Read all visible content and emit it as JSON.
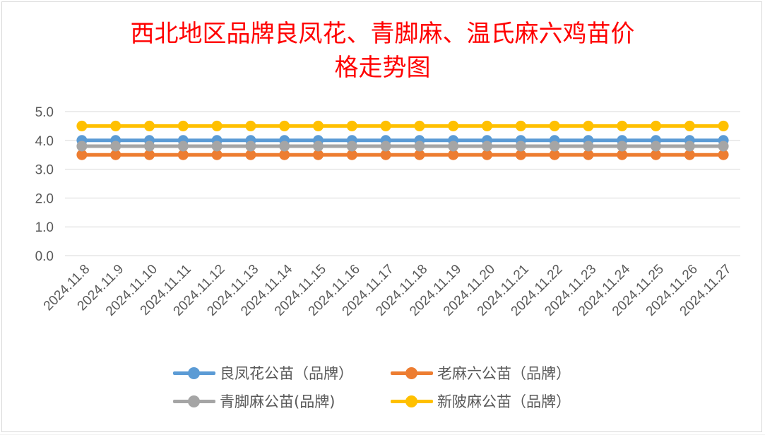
{
  "colors": {
    "title": "#ff0000",
    "grid": "#d9d9d9",
    "tick_text": "#595959",
    "series": [
      "#5b9bd5",
      "#ed7d31",
      "#a5a5a5",
      "#ffc000"
    ]
  },
  "chart_data": {
    "type": "line",
    "title": "西北地区品牌良凤花、青脚麻、温氏麻六鸡苗价格走势图",
    "title_lines": [
      "西北地区品牌良凤花、青脚麻、温氏麻六鸡苗价",
      "格走势图"
    ],
    "xlabel": "",
    "ylabel": "",
    "x": [
      "2024.11.8",
      "2024.11.9",
      "2024.11.10",
      "2024.11.11",
      "2024.11.12",
      "2024.11.13",
      "2024.11.14",
      "2024.11.15",
      "2024.11.16",
      "2024.11.17",
      "2024.11.18",
      "2024.11.19",
      "2024.11.20",
      "2024.11.21",
      "2024.11.22",
      "2024.11.23",
      "2024.11.24",
      "2024.11.25",
      "2024.11.26",
      "2024.11.27"
    ],
    "ylim": [
      0,
      5
    ],
    "yticks": [
      "0.0",
      "1.0",
      "2.0",
      "3.0",
      "4.0",
      "5.0"
    ],
    "grid": true,
    "legend_position": "bottom",
    "series": [
      {
        "name": "良凤花公苗（品牌）",
        "values": [
          4.0,
          4.0,
          4.0,
          4.0,
          4.0,
          4.0,
          4.0,
          4.0,
          4.0,
          4.0,
          4.0,
          4.0,
          4.0,
          4.0,
          4.0,
          4.0,
          4.0,
          4.0,
          4.0,
          4.0
        ]
      },
      {
        "name": "老麻六公苗（品牌）",
        "values": [
          3.5,
          3.5,
          3.5,
          3.5,
          3.5,
          3.5,
          3.5,
          3.5,
          3.5,
          3.5,
          3.5,
          3.5,
          3.5,
          3.5,
          3.5,
          3.5,
          3.5,
          3.5,
          3.5,
          3.5
        ]
      },
      {
        "name": "青脚麻公苗(品牌)",
        "values": [
          3.8,
          3.8,
          3.8,
          3.8,
          3.8,
          3.8,
          3.8,
          3.8,
          3.8,
          3.8,
          3.8,
          3.8,
          3.8,
          3.8,
          3.8,
          3.8,
          3.8,
          3.8,
          3.8,
          3.8
        ]
      },
      {
        "name": "新陂麻公苗（品牌）",
        "values": [
          4.5,
          4.5,
          4.5,
          4.5,
          4.5,
          4.5,
          4.5,
          4.5,
          4.5,
          4.5,
          4.5,
          4.5,
          4.5,
          4.5,
          4.5,
          4.5,
          4.5,
          4.5,
          4.5,
          4.5
        ]
      }
    ]
  }
}
